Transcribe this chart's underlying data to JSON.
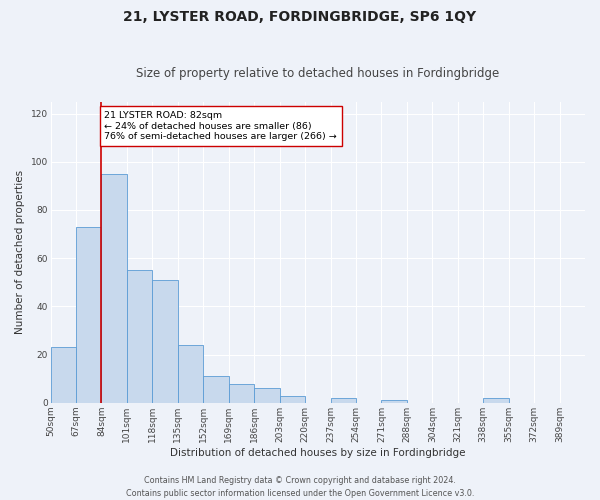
{
  "title": "21, LYSTER ROAD, FORDINGBRIDGE, SP6 1QY",
  "subtitle": "Size of property relative to detached houses in Fordingbridge",
  "xlabel": "Distribution of detached houses by size in Fordingbridge",
  "ylabel": "Number of detached properties",
  "footer_line1": "Contains HM Land Registry data © Crown copyright and database right 2024.",
  "footer_line2": "Contains public sector information licensed under the Open Government Licence v3.0.",
  "bin_labels": [
    "50sqm",
    "67sqm",
    "84sqm",
    "101sqm",
    "118sqm",
    "135sqm",
    "152sqm",
    "169sqm",
    "186sqm",
    "203sqm",
    "220sqm",
    "237sqm",
    "254sqm",
    "271sqm",
    "288sqm",
    "304sqm",
    "321sqm",
    "338sqm",
    "355sqm",
    "372sqm",
    "389sqm"
  ],
  "bar_values": [
    23,
    73,
    95,
    55,
    51,
    24,
    11,
    8,
    6,
    3,
    0,
    2,
    0,
    1,
    0,
    0,
    0,
    2,
    0,
    0,
    0
  ],
  "bar_color": "#c8d9ed",
  "bar_edge_color": "#5b9bd5",
  "marker_label_line1": "21 LYSTER ROAD: 82sqm",
  "marker_label_line2": "← 24% of detached houses are smaller (86)",
  "marker_label_line3": "76% of semi-detached houses are larger (266) →",
  "marker_color": "#cc0000",
  "annotation_box_color": "#ffffff",
  "annotation_box_edge_color": "#cc0000",
  "ylim": [
    0,
    125
  ],
  "yticks": [
    0,
    20,
    40,
    60,
    80,
    100,
    120
  ],
  "background_color": "#eef2f9",
  "grid_color": "#ffffff",
  "title_fontsize": 10,
  "subtitle_fontsize": 8.5,
  "axis_label_fontsize": 7.5,
  "tick_fontsize": 6.5,
  "annotation_fontsize": 6.8,
  "footer_fontsize": 5.8
}
